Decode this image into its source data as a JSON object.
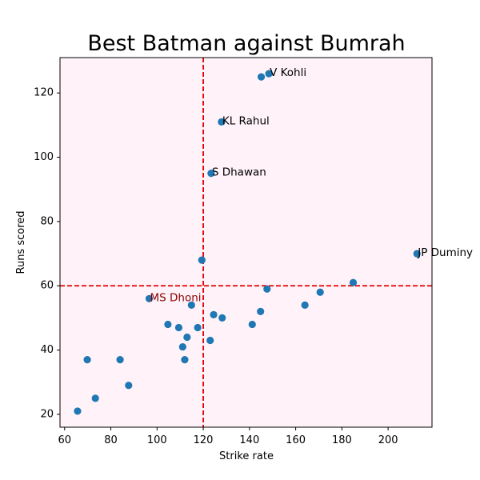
{
  "chart_data": {
    "type": "scatter",
    "title": "Best Batman against Bumrah",
    "xlabel": "Strike rate",
    "ylabel": "Runs scored",
    "xlim": [
      58,
      219
    ],
    "ylim": [
      16,
      131
    ],
    "xticks": [
      60,
      80,
      100,
      120,
      140,
      160,
      180,
      200
    ],
    "yticks": [
      20,
      40,
      60,
      80,
      100,
      120
    ],
    "background_color": "#fff2f8",
    "point_color": "#1f77b4",
    "reference_line_color": "#e00000",
    "reference_lines": {
      "x": 120,
      "y": 60
    },
    "grid": false,
    "points": [
      {
        "x": 65.6,
        "y": 21
      },
      {
        "x": 69.8,
        "y": 37
      },
      {
        "x": 73.3,
        "y": 25
      },
      {
        "x": 84.0,
        "y": 37
      },
      {
        "x": 87.7,
        "y": 29
      },
      {
        "x": 96.6,
        "y": 56
      },
      {
        "x": 104.7,
        "y": 48
      },
      {
        "x": 109.4,
        "y": 47
      },
      {
        "x": 111.1,
        "y": 41
      },
      {
        "x": 112.0,
        "y": 37
      },
      {
        "x": 113.0,
        "y": 44
      },
      {
        "x": 114.9,
        "y": 54
      },
      {
        "x": 117.6,
        "y": 47
      },
      {
        "x": 119.4,
        "y": 68
      },
      {
        "x": 123.0,
        "y": 43
      },
      {
        "x": 123.4,
        "y": 95
      },
      {
        "x": 124.5,
        "y": 51
      },
      {
        "x": 127.9,
        "y": 111
      },
      {
        "x": 128.2,
        "y": 50
      },
      {
        "x": 141.2,
        "y": 48
      },
      {
        "x": 144.8,
        "y": 52
      },
      {
        "x": 145.1,
        "y": 125
      },
      {
        "x": 147.6,
        "y": 59
      },
      {
        "x": 148.4,
        "y": 126
      },
      {
        "x": 164.0,
        "y": 54
      },
      {
        "x": 170.6,
        "y": 58
      },
      {
        "x": 184.9,
        "y": 61
      },
      {
        "x": 212.5,
        "y": 70
      }
    ],
    "annotations": [
      {
        "text": "V Kohli",
        "x": 148.4,
        "y": 126,
        "color": "#000000"
      },
      {
        "text": "KL Rahul",
        "x": 127.9,
        "y": 111,
        "color": "#000000"
      },
      {
        "text": "S Dhawan",
        "x": 123.4,
        "y": 95,
        "color": "#000000"
      },
      {
        "text": "JP Duminy",
        "x": 212.5,
        "y": 70,
        "color": "#000000"
      },
      {
        "text": "MS Dhoni",
        "x": 96.6,
        "y": 56,
        "color": "#8b0000"
      }
    ]
  }
}
